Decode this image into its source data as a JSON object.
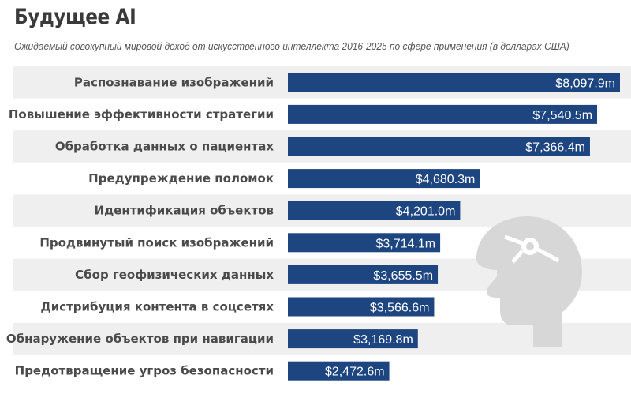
{
  "title": "Будущее AI",
  "subtitle": "Ожидаемый совокупный мировой доход от искусственного интеллекта 2016-2025 по сфере применения (в долларах США)",
  "colors": {
    "bar": "#1d4580",
    "row_background": "#efefef",
    "watermark": "#d7d7d7"
  },
  "chart_data": {
    "type": "bar",
    "orientation": "horizontal",
    "categories": [
      "Распознавание изображений",
      "Повышение эффективности стратегии",
      "Обработка данных о пациентах",
      "Предупреждение поломок",
      "Идентификация объектов",
      "Продвинутый поиск изображений",
      "Сбор геофизических данных",
      "Дистрибуция контента в соцсетях",
      "Обнаружение объектов при навигации",
      "Предотвращение угроз безопасности"
    ],
    "values": [
      8097.9,
      7540.5,
      7366.4,
      4680.3,
      4201.0,
      3714.1,
      3655.5,
      3566.6,
      3169.8,
      2472.6
    ],
    "value_labels": [
      "$8,097.9m",
      "$7,540.5m",
      "$7,366.4m",
      "$4,680.3m",
      "$4,201.0m",
      "$3,714.1m",
      "$3,655.5m",
      "$3,566.6m",
      "$3,169.8m",
      "$2,472.6m"
    ],
    "unit": "millions USD",
    "xlim": [
      0,
      8097.9
    ],
    "grid": false,
    "legend": "none",
    "alternating_row_background": true
  }
}
